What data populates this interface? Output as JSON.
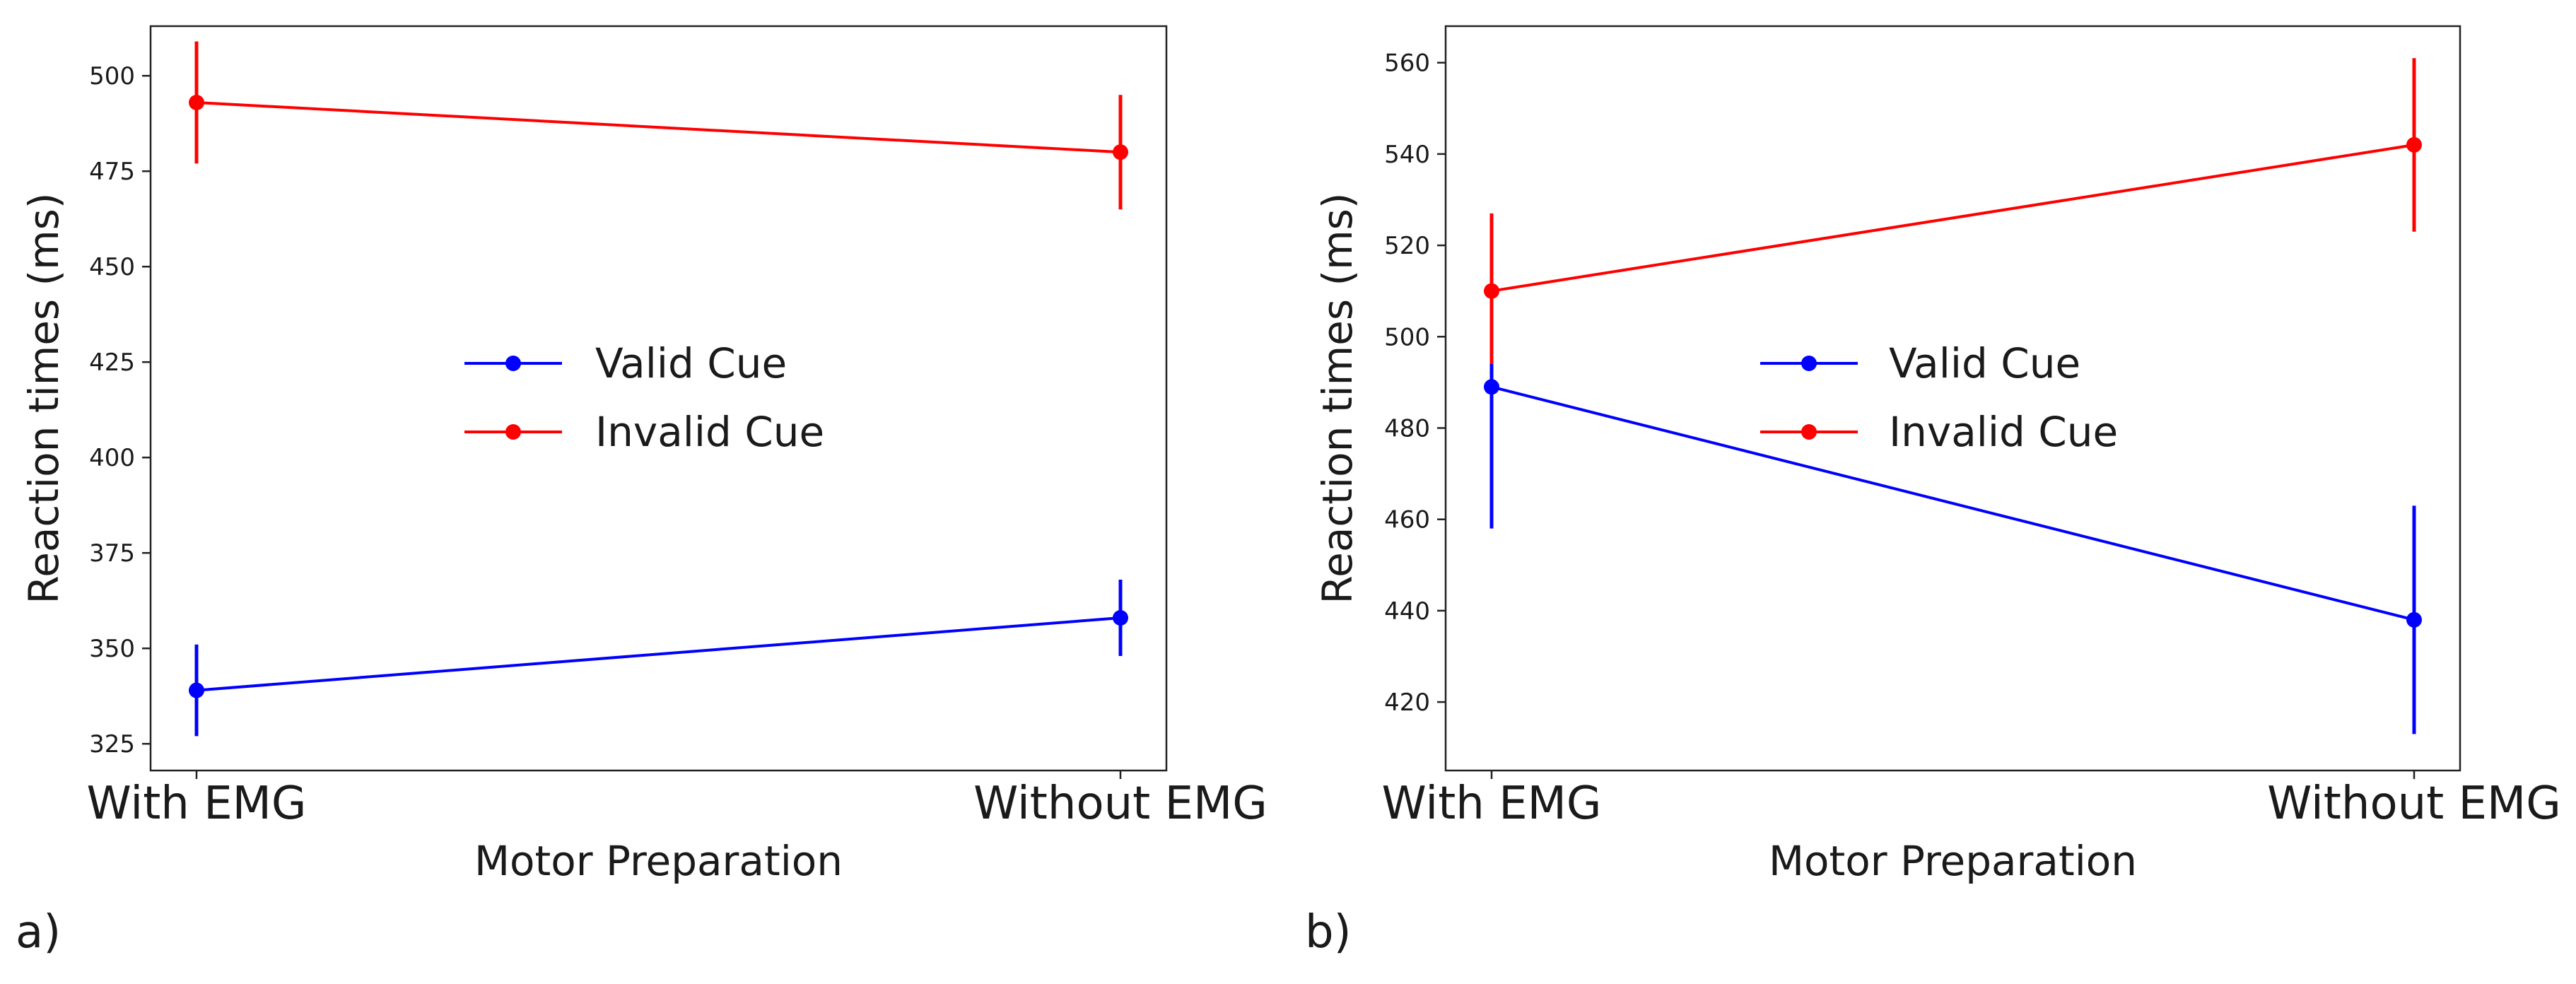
{
  "chart_data": [
    {
      "type": "line",
      "panel_label": "a)",
      "categories": [
        "With EMG",
        "Without EMG"
      ],
      "xlabel": "Motor Preparation",
      "ylabel": "Reaction times (ms)",
      "ylim": [
        318,
        513
      ],
      "yticks": [
        325,
        350,
        375,
        400,
        425,
        450,
        475,
        500
      ],
      "legend": "center",
      "series": [
        {
          "name": "Valid Cue",
          "color": "#0000ff",
          "values": [
            339,
            358
          ],
          "err_low": [
            327,
            348
          ],
          "err_high": [
            351,
            368
          ]
        },
        {
          "name": "Invalid Cue",
          "color": "#ff0000",
          "values": [
            493,
            480
          ],
          "err_low": [
            477,
            465
          ],
          "err_high": [
            509,
            495
          ]
        }
      ]
    },
    {
      "type": "line",
      "panel_label": "b)",
      "categories": [
        "With EMG",
        "Without EMG"
      ],
      "xlabel": "Motor Preparation",
      "ylabel": "Reaction times (ms)",
      "ylim": [
        405,
        568
      ],
      "yticks": [
        420,
        440,
        460,
        480,
        500,
        520,
        540,
        560
      ],
      "legend": "center",
      "series": [
        {
          "name": "Valid Cue",
          "color": "#0000ff",
          "values": [
            489,
            438
          ],
          "err_low": [
            458,
            413
          ],
          "err_high": [
            520,
            463
          ]
        },
        {
          "name": "Invalid Cue",
          "color": "#ff0000",
          "values": [
            510,
            542
          ],
          "err_low": [
            494,
            523
          ],
          "err_high": [
            527,
            561
          ]
        }
      ]
    }
  ]
}
